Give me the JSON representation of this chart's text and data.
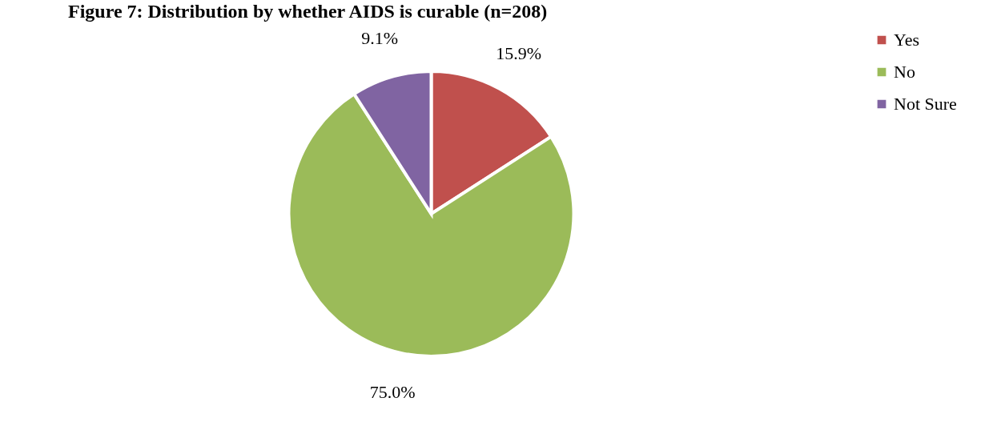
{
  "chart_data": {
    "type": "pie",
    "title": "Figure 7: Distribution by whether AIDS is curable (n=208)",
    "categories": [
      "Yes",
      "No",
      "Not Sure"
    ],
    "values": [
      15.9,
      75.0,
      9.1
    ],
    "value_labels": [
      "15.9%",
      "75.0%",
      "9.1%"
    ],
    "colors": [
      "#c0504d",
      "#9bbb59",
      "#8064a2"
    ],
    "legend": "right"
  }
}
